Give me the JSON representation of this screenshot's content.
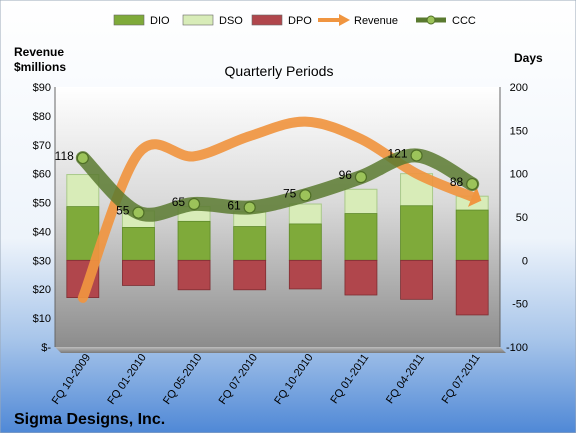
{
  "chart_data": {
    "type": "bar",
    "title": "Quarterly Periods",
    "company": "Sigma Designs, Inc.",
    "left_axis_label": [
      "Revenue",
      "$millions"
    ],
    "right_axis_label": "Days",
    "categories": [
      "FQ 10-2009",
      "FQ 01-2010",
      "FQ 05-2010",
      "FQ 07-2010",
      "FQ 10-2010",
      "FQ 01-2011",
      "FQ 04-2011",
      "FQ 07-2011"
    ],
    "left_ticks": [
      "$90",
      "$80",
      "$70",
      "$60",
      "$50",
      "$40",
      "$30",
      "$20",
      "$10",
      "$-"
    ],
    "right_ticks": [
      "200",
      "150",
      "100",
      "50",
      "0",
      "-50",
      "-100"
    ],
    "left_range": [
      0,
      90
    ],
    "right_range": [
      -100,
      200
    ],
    "series": [
      {
        "name": "DIO",
        "axis": "right",
        "color": "#7FAA3A",
        "values": [
          62,
          38,
          45,
          39,
          42,
          54,
          63,
          58
        ]
      },
      {
        "name": "DSO",
        "axis": "right",
        "color": "#D8ECB8",
        "values": [
          99,
          57,
          62,
          56,
          65,
          82,
          100,
          74
        ]
      },
      {
        "name": "DPO",
        "axis": "right",
        "color": "#B0464C",
        "values": [
          -43,
          -29,
          -34,
          -34,
          -33,
          -40,
          -45,
          -63
        ]
      },
      {
        "name": "Revenue",
        "axis": "left",
        "color": "#F09540",
        "values": [
          17,
          67,
          66,
          73,
          78,
          72,
          60,
          52
        ]
      },
      {
        "name": "CCC",
        "axis": "right",
        "color": "#5A7A30",
        "values": [
          118,
          55,
          65,
          61,
          75,
          96,
          121,
          88
        ]
      }
    ],
    "ccc_labels": [
      "118",
      "55",
      "65",
      "61",
      "75",
      "96",
      "121",
      "88"
    ],
    "grid": false,
    "legend": "top"
  }
}
